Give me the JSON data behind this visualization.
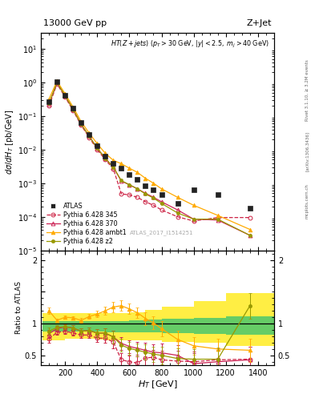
{
  "title_left": "13000 GeV pp",
  "title_right": "Z+Jet",
  "annotation": "HT(Z+jets) (p_{T} > 30 GeV, |y| < 2.5, m_{j} > 40 GeV)",
  "watermark": "ATLAS_2017_I1514251",
  "ylabel_main": "dσ/dH_{T} [pb/GeV]",
  "ylabel_ratio": "Ratio to ATLAS",
  "xlabel": "H_{T} [GeV]",
  "right_label1": "Rivet 3.1.10, ≥ 3.2M events",
  "right_label2": "[arXiv:1306.3436]",
  "right_label3": "mcplots.cern.ch",
  "atlas_x": [
    100,
    150,
    200,
    250,
    300,
    350,
    400,
    450,
    500,
    550,
    600,
    650,
    700,
    750,
    800,
    900,
    1000,
    1150,
    1350
  ],
  "atlas_y": [
    0.27,
    1.05,
    0.42,
    0.17,
    0.065,
    0.028,
    0.013,
    0.0065,
    0.0038,
    0.0028,
    0.0018,
    0.0013,
    0.00085,
    0.00065,
    0.00045,
    0.00025,
    0.00065,
    0.00045,
    0.00018
  ],
  "p345_x": [
    100,
    150,
    200,
    250,
    300,
    350,
    400,
    450,
    500,
    550,
    600,
    650,
    700,
    750,
    800,
    900,
    1000,
    1150,
    1350
  ],
  "p345_y": [
    0.2,
    0.9,
    0.37,
    0.145,
    0.053,
    0.023,
    0.01,
    0.005,
    0.0027,
    0.00048,
    0.00045,
    0.00038,
    0.00028,
    0.00022,
    0.00016,
    0.0001,
    7.5e-05,
    9.5e-05,
    9.5e-05
  ],
  "p370_x": [
    100,
    150,
    200,
    250,
    300,
    350,
    400,
    450,
    500,
    550,
    600,
    650,
    700,
    750,
    800,
    900,
    1000,
    1150,
    1350
  ],
  "p370_y": [
    0.23,
    0.97,
    0.4,
    0.158,
    0.057,
    0.025,
    0.011,
    0.0055,
    0.003,
    0.00115,
    0.0009,
    0.00068,
    0.0005,
    0.00038,
    0.00028,
    0.00016,
    8.5e-05,
    8e-05,
    2.8e-05
  ],
  "ambt1_x": [
    100,
    150,
    200,
    250,
    300,
    350,
    400,
    450,
    500,
    550,
    600,
    650,
    700,
    750,
    800,
    900,
    1000,
    1150,
    1350
  ],
  "ambt1_y": [
    0.32,
    1.1,
    0.46,
    0.185,
    0.068,
    0.031,
    0.015,
    0.0078,
    0.0048,
    0.0038,
    0.0028,
    0.0021,
    0.0014,
    0.001,
    0.00068,
    0.00038,
    0.00022,
    0.00011,
    4.2e-05
  ],
  "z2_x": [
    100,
    150,
    200,
    250,
    300,
    350,
    400,
    450,
    500,
    550,
    600,
    650,
    700,
    750,
    800,
    900,
    1000,
    1150,
    1350
  ],
  "z2_y": [
    0.24,
    0.99,
    0.4,
    0.158,
    0.057,
    0.025,
    0.011,
    0.0055,
    0.003,
    0.0012,
    0.0009,
    0.00068,
    0.00048,
    0.00036,
    0.00025,
    0.00013,
    8.5e-05,
    8.5e-05,
    2.8e-05
  ],
  "ratio_345": [
    0.76,
    0.86,
    0.88,
    0.85,
    0.82,
    0.82,
    0.77,
    0.77,
    0.71,
    0.43,
    0.4,
    0.38,
    0.46,
    0.47,
    0.43,
    0.41,
    0.4,
    0.43,
    0.44
  ],
  "ratio_370": [
    0.84,
    0.92,
    0.95,
    0.93,
    0.88,
    0.89,
    0.85,
    0.85,
    0.79,
    0.69,
    0.64,
    0.61,
    0.58,
    0.55,
    0.54,
    0.5,
    0.37,
    0.4,
    0.43
  ],
  "ratio_ambt1": [
    1.2,
    1.05,
    1.1,
    1.09,
    1.05,
    1.11,
    1.15,
    1.2,
    1.26,
    1.28,
    1.23,
    1.17,
    1.08,
    1.01,
    0.92,
    0.75,
    0.65,
    0.6,
    0.58
  ],
  "ratio_z2": [
    0.88,
    0.94,
    0.95,
    0.93,
    0.88,
    0.89,
    0.85,
    0.85,
    0.79,
    0.66,
    0.61,
    0.58,
    0.55,
    0.52,
    0.5,
    0.45,
    0.44,
    0.44,
    1.28
  ],
  "ratio_345_err": [
    0.06,
    0.04,
    0.04,
    0.04,
    0.05,
    0.05,
    0.06,
    0.07,
    0.1,
    0.1,
    0.1,
    0.1,
    0.12,
    0.12,
    0.14,
    0.16,
    0.16,
    0.18,
    0.2
  ],
  "ratio_370_err": [
    0.06,
    0.04,
    0.04,
    0.04,
    0.05,
    0.05,
    0.06,
    0.07,
    0.1,
    0.1,
    0.1,
    0.1,
    0.12,
    0.12,
    0.14,
    0.16,
    0.16,
    0.18,
    0.2
  ],
  "ratio_ambt1_err": [
    0.05,
    0.03,
    0.03,
    0.03,
    0.04,
    0.04,
    0.05,
    0.06,
    0.08,
    0.08,
    0.08,
    0.08,
    0.1,
    0.1,
    0.12,
    0.14,
    0.14,
    0.16,
    0.18
  ],
  "ratio_z2_err": [
    0.06,
    0.04,
    0.04,
    0.04,
    0.05,
    0.05,
    0.06,
    0.07,
    0.1,
    0.1,
    0.1,
    0.1,
    0.12,
    0.12,
    0.14,
    0.16,
    0.16,
    0.18,
    0.2
  ],
  "band_edges": [
    60,
    150,
    200,
    250,
    300,
    350,
    400,
    450,
    500,
    600,
    700,
    800,
    1000,
    1200,
    1500
  ],
  "band_green_lo": [
    0.87,
    0.87,
    0.88,
    0.88,
    0.88,
    0.88,
    0.87,
    0.86,
    0.86,
    0.86,
    0.86,
    0.85,
    0.84,
    0.82
  ],
  "band_green_hi": [
    1.04,
    1.04,
    1.04,
    1.04,
    1.04,
    1.04,
    1.04,
    1.04,
    1.04,
    1.05,
    1.06,
    1.07,
    1.09,
    1.12
  ],
  "band_yellow_lo": [
    0.74,
    0.74,
    0.76,
    0.76,
    0.76,
    0.76,
    0.75,
    0.74,
    0.74,
    0.73,
    0.73,
    0.71,
    0.7,
    0.65
  ],
  "band_yellow_hi": [
    1.16,
    1.16,
    1.16,
    1.16,
    1.16,
    1.16,
    1.16,
    1.16,
    1.16,
    1.18,
    1.22,
    1.26,
    1.35,
    1.48
  ],
  "colors": {
    "atlas": "#222222",
    "p345": "#cc2244",
    "p370": "#cc2255",
    "ambt1": "#ffaa00",
    "z2": "#999900",
    "green_band": "#66cc66",
    "yellow_band": "#ffee44"
  },
  "xlim": [
    50,
    1500
  ],
  "ylim_main": [
    1e-05,
    30
  ],
  "ylim_ratio": [
    0.35,
    2.15
  ]
}
